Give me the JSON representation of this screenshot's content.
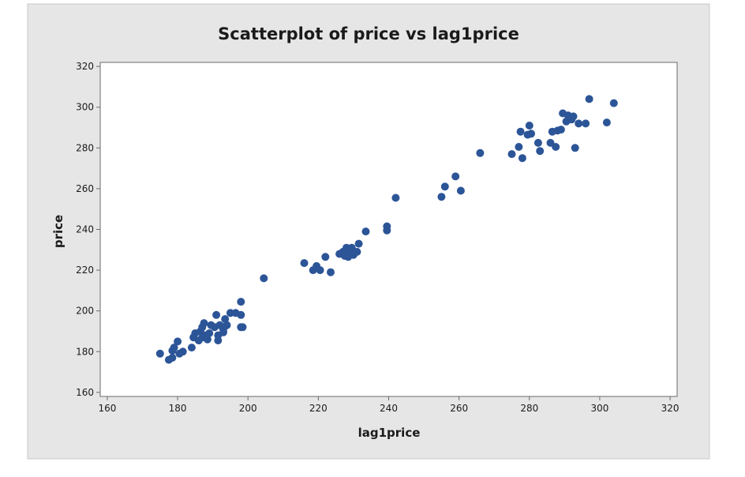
{
  "chart_data": {
    "type": "scatter",
    "title": "Scatterplot of price vs lag1price",
    "xlabel": "lag1price",
    "ylabel": "price",
    "xlim": [
      158,
      322
    ],
    "ylim": [
      158,
      322
    ],
    "xticks": [
      160,
      180,
      200,
      220,
      240,
      260,
      280,
      300,
      320
    ],
    "yticks": [
      160,
      180,
      200,
      220,
      240,
      260,
      280,
      300,
      320
    ],
    "grid": false,
    "legend": "none",
    "colors": {
      "point": "#2c5597",
      "frame_bg": "#e6e6e6",
      "plot_bg": "#ffffff",
      "axis": "#6b6b6b"
    },
    "series": [
      {
        "points": [
          [
            175,
            179
          ],
          [
            177.5,
            176
          ],
          [
            178.5,
            177
          ],
          [
            178.5,
            180.5
          ],
          [
            179,
            182
          ],
          [
            180,
            185
          ],
          [
            180.5,
            179
          ],
          [
            181.5,
            180
          ],
          [
            184,
            182
          ],
          [
            184.5,
            187
          ],
          [
            185,
            189
          ],
          [
            186,
            185.5
          ],
          [
            186.5,
            190
          ],
          [
            187,
            187
          ],
          [
            187,
            192
          ],
          [
            187.5,
            194
          ],
          [
            188,
            188
          ],
          [
            188.5,
            186
          ],
          [
            189,
            189
          ],
          [
            189.5,
            193
          ],
          [
            190.5,
            192
          ],
          [
            191,
            198
          ],
          [
            191.5,
            188
          ],
          [
            191.5,
            185.5
          ],
          [
            192,
            193
          ],
          [
            193,
            191
          ],
          [
            193,
            189.5
          ],
          [
            193.5,
            196
          ],
          [
            194,
            193
          ],
          [
            195,
            199
          ],
          [
            196.5,
            199
          ],
          [
            198,
            204.5
          ],
          [
            198,
            198
          ],
          [
            198,
            192
          ],
          [
            198.5,
            192
          ],
          [
            204.5,
            216
          ],
          [
            216,
            223.5
          ],
          [
            218.5,
            220
          ],
          [
            219.5,
            222
          ],
          [
            220.5,
            220
          ],
          [
            222,
            226.5
          ],
          [
            223.5,
            219
          ],
          [
            226,
            228
          ],
          [
            227,
            229
          ],
          [
            227.5,
            227
          ],
          [
            228,
            231
          ],
          [
            228.5,
            226.5
          ],
          [
            229,
            229.5
          ],
          [
            229.5,
            231
          ],
          [
            230,
            227.5
          ],
          [
            231,
            229
          ],
          [
            231.5,
            233
          ],
          [
            233.5,
            239
          ],
          [
            239.5,
            239.5
          ],
          [
            239.5,
            241.5
          ],
          [
            242,
            255.5
          ],
          [
            255,
            256
          ],
          [
            256,
            261
          ],
          [
            259,
            266
          ],
          [
            260.5,
            259
          ],
          [
            266,
            277.5
          ],
          [
            275,
            277
          ],
          [
            277,
            280.5
          ],
          [
            277.5,
            288
          ],
          [
            278,
            275
          ],
          [
            279.5,
            286.5
          ],
          [
            280,
            291
          ],
          [
            280.5,
            287
          ],
          [
            282.5,
            282.5
          ],
          [
            283,
            278.5
          ],
          [
            286,
            282.5
          ],
          [
            286.5,
            288
          ],
          [
            287.5,
            280.5
          ],
          [
            288,
            288.5
          ],
          [
            289,
            289
          ],
          [
            289.5,
            297
          ],
          [
            290.5,
            293
          ],
          [
            291,
            296
          ],
          [
            292,
            294
          ],
          [
            292.5,
            295.5
          ],
          [
            293,
            280
          ],
          [
            294,
            292
          ],
          [
            296,
            292
          ],
          [
            297,
            304
          ],
          [
            302,
            292.5
          ],
          [
            304,
            302
          ]
        ]
      }
    ]
  }
}
